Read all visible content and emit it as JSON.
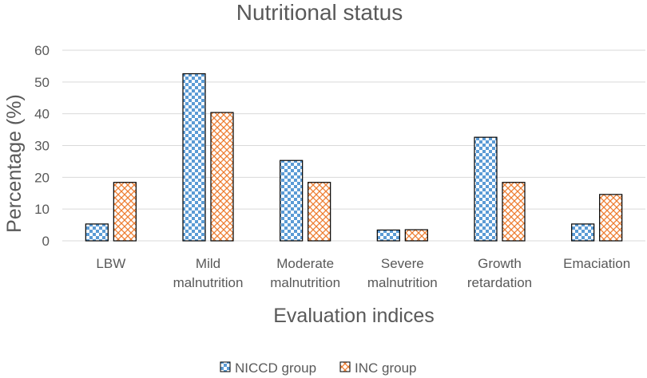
{
  "chart_data": {
    "type": "bar",
    "title": "Nutritional status",
    "xlabel": "Evaluation indices",
    "ylabel": "Percentage (%)",
    "ylim": [
      0,
      60
    ],
    "yticks": [
      0,
      10,
      20,
      30,
      40,
      50,
      60
    ],
    "gridlines": true,
    "legend_position": "bottom",
    "categories": [
      [
        "LBW"
      ],
      [
        "Mild",
        "malnutrition"
      ],
      [
        "Moderate",
        "malnutrition"
      ],
      [
        "Severe",
        "malnutrition"
      ],
      [
        "Growth",
        "retardation"
      ],
      [
        "Emaciation"
      ]
    ],
    "series": [
      {
        "name": "NICCD group",
        "color": "#5b9bd5",
        "pattern": "checkerboard",
        "values": [
          5.3,
          52.6,
          25.3,
          3.4,
          32.6,
          5.3
        ]
      },
      {
        "name": "INC group",
        "color": "#ed7d31",
        "pattern": "diagonal-cross",
        "values": [
          18.4,
          40.4,
          18.4,
          3.5,
          18.4,
          14.6
        ]
      }
    ]
  }
}
